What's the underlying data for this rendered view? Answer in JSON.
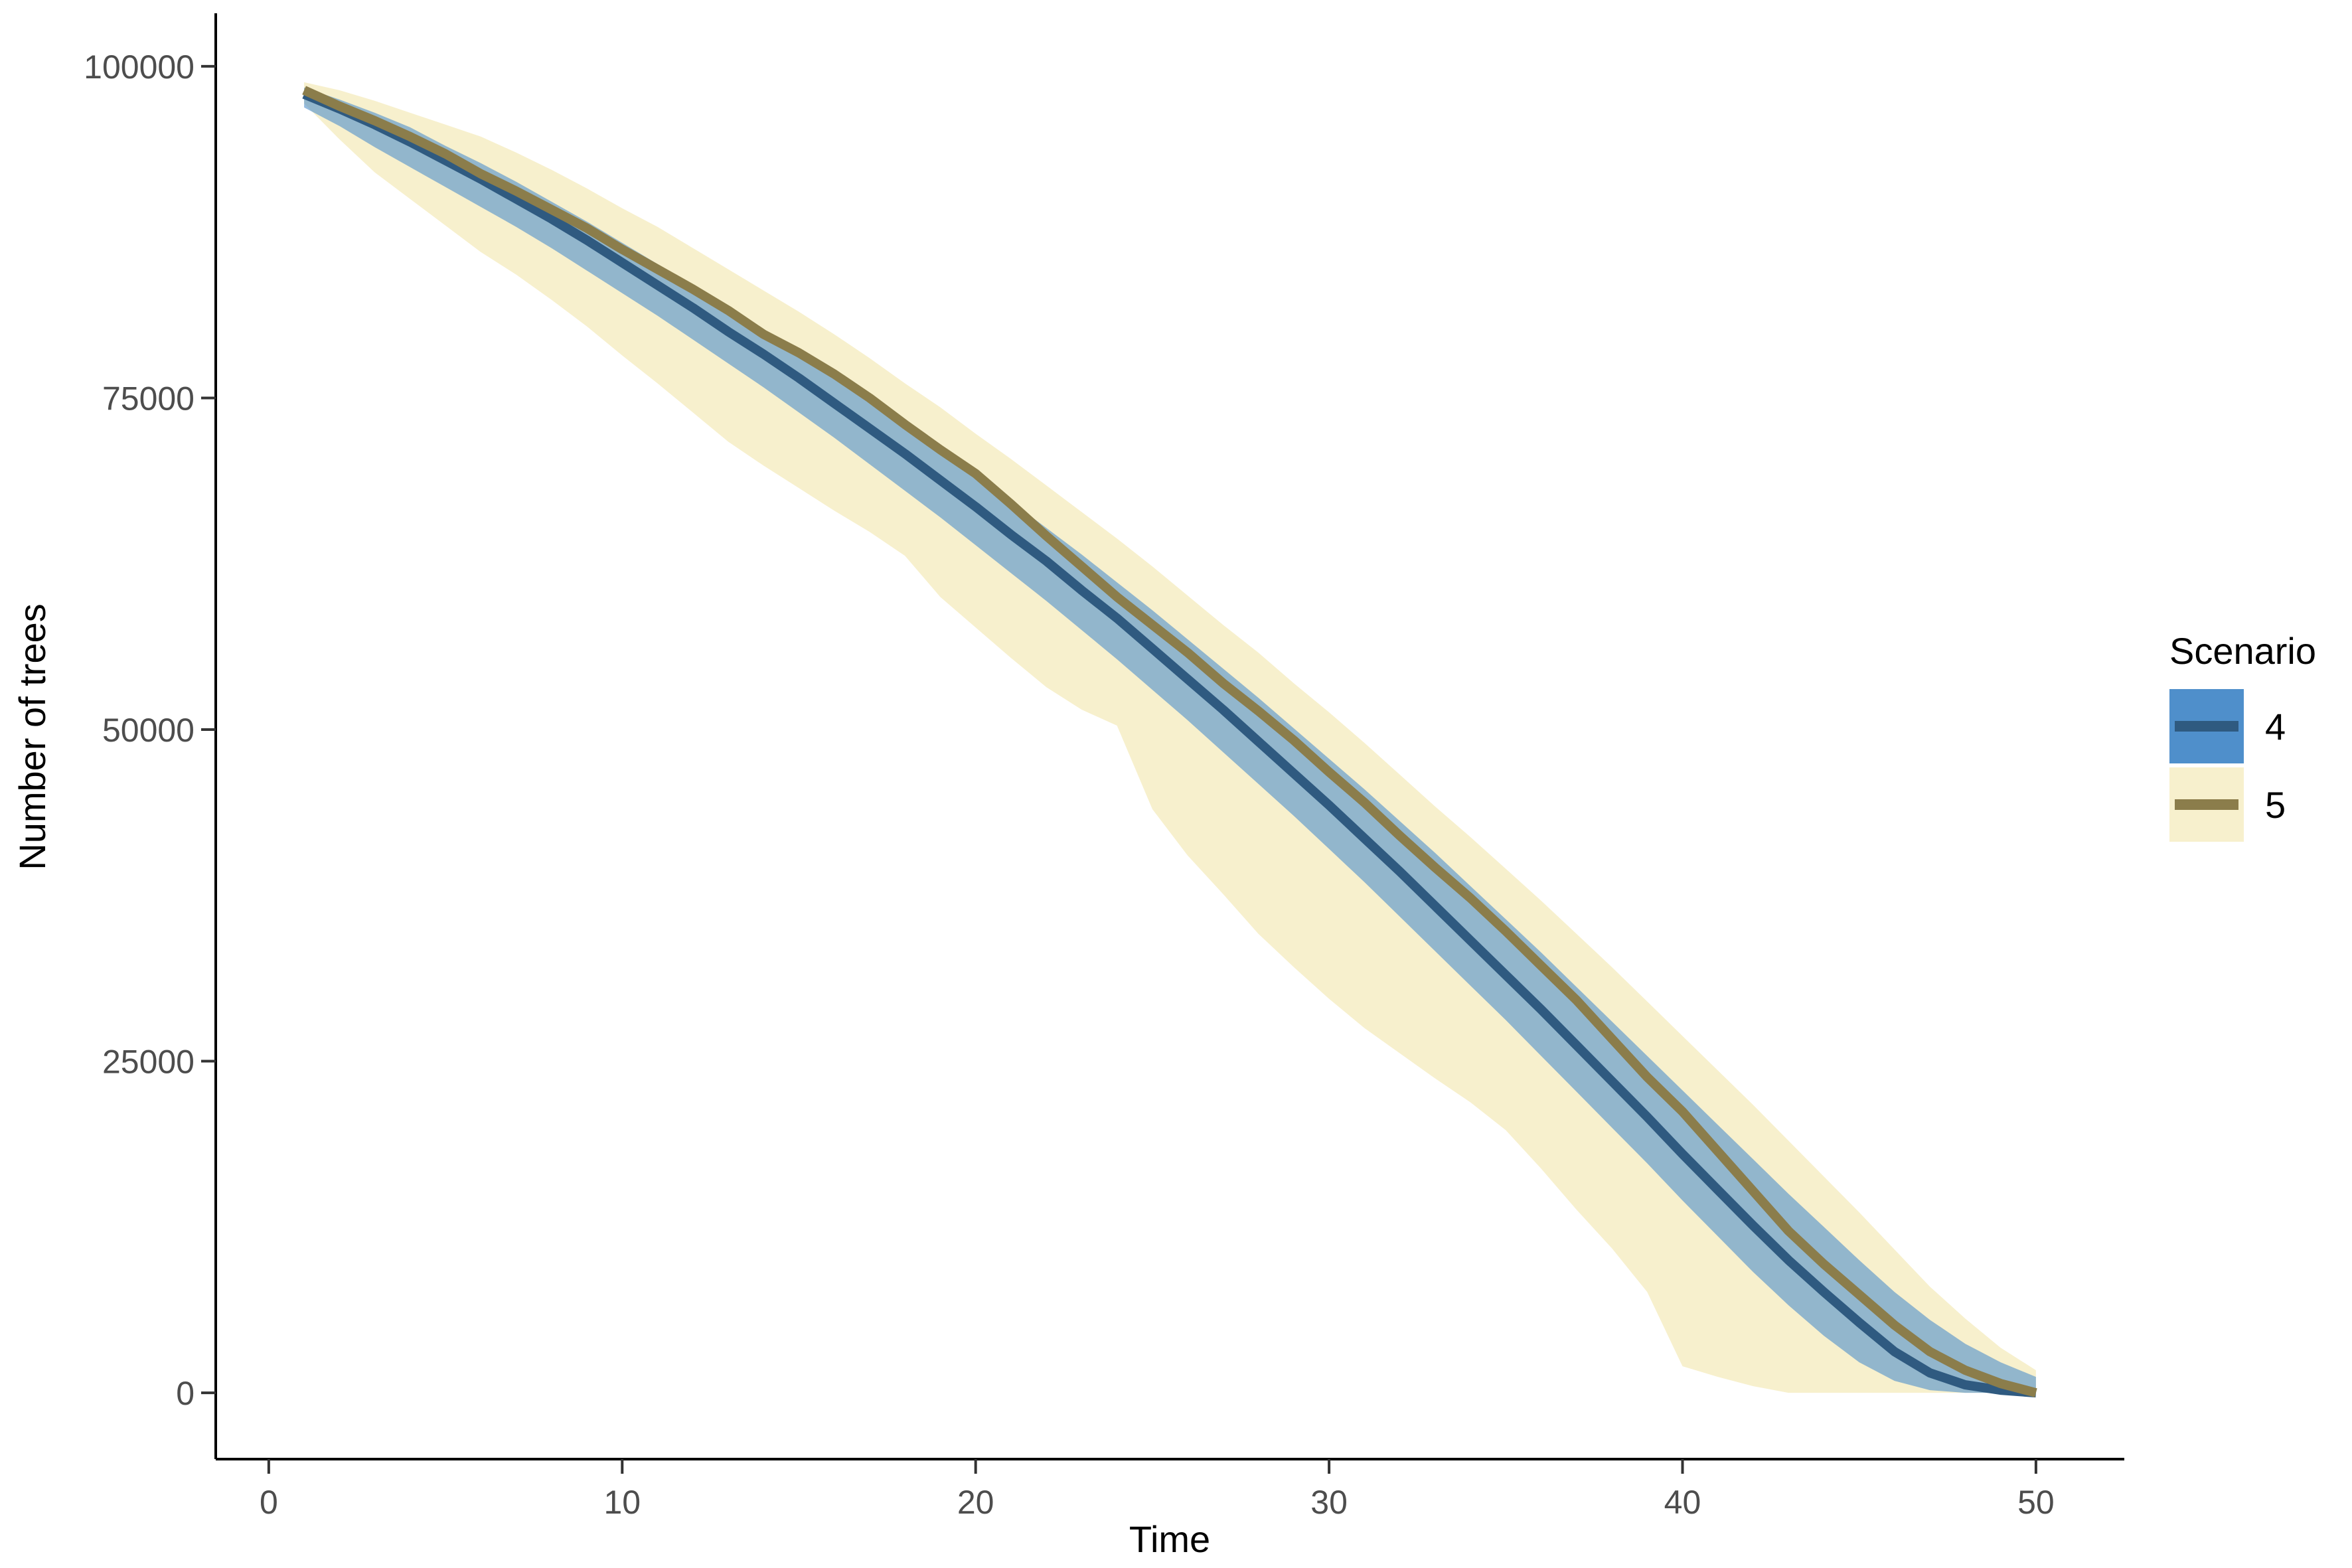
{
  "chart_data": {
    "type": "area",
    "title": "",
    "xlabel": "Time",
    "ylabel": "Number of trees",
    "xlim": [
      -1.5,
      52.5
    ],
    "ylim": [
      -5000,
      104000
    ],
    "x_ticks": [
      0,
      10,
      20,
      30,
      40,
      50
    ],
    "y_ticks": [
      0,
      25000,
      50000,
      75000,
      100000
    ],
    "x_tick_labels": [
      "0",
      "10",
      "20",
      "30",
      "40",
      "50"
    ],
    "y_tick_labels": [
      "0",
      "25000",
      "50000",
      "75000",
      "100000"
    ],
    "grid": false,
    "legend": {
      "title": "Scenario",
      "position": "right"
    },
    "x": [
      1,
      2,
      3,
      4,
      5,
      6,
      7,
      8,
      9,
      10,
      11,
      12,
      13,
      14,
      15,
      16,
      17,
      18,
      19,
      20,
      21,
      22,
      23,
      24,
      25,
      26,
      27,
      28,
      29,
      30,
      31,
      32,
      33,
      34,
      35,
      36,
      37,
      38,
      39,
      40,
      41,
      42,
      43,
      44,
      45,
      46,
      47,
      48,
      49,
      50
    ],
    "series": [
      {
        "name": "4",
        "line_color": "#2f5a80",
        "fill_color": "#4f8fcb",
        "mean": [
          97900,
          96800,
          95600,
          94300,
          92900,
          91500,
          90000,
          88500,
          86900,
          85200,
          83500,
          81800,
          80000,
          78300,
          76500,
          74600,
          72700,
          70800,
          68800,
          66800,
          64700,
          62700,
          60500,
          58400,
          56100,
          53800,
          51500,
          49100,
          46700,
          44300,
          41800,
          39300,
          36700,
          34100,
          31500,
          28900,
          26200,
          23500,
          20800,
          18000,
          15300,
          12600,
          10000,
          7600,
          5300,
          3100,
          1500,
          600,
          200,
          0
        ],
        "upper": [
          98400,
          97500,
          96500,
          95400,
          94000,
          92700,
          91300,
          89800,
          88300,
          86700,
          85100,
          83500,
          81800,
          80100,
          78400,
          76600,
          74800,
          73000,
          71100,
          69200,
          67200,
          65200,
          63200,
          61100,
          59000,
          56800,
          54600,
          52400,
          50100,
          47800,
          45500,
          43100,
          40700,
          38200,
          35700,
          33200,
          30600,
          28000,
          25400,
          22800,
          20200,
          17600,
          15000,
          12500,
          10000,
          7600,
          5500,
          3700,
          2300,
          1200
        ],
        "lower": [
          96900,
          95500,
          93900,
          92400,
          90900,
          89400,
          87900,
          86300,
          84600,
          82900,
          81200,
          79400,
          77600,
          75800,
          73900,
          72000,
          70000,
          68000,
          66000,
          63900,
          61800,
          59700,
          57500,
          55300,
          53000,
          50700,
          48300,
          45900,
          43500,
          41000,
          38500,
          35900,
          33300,
          30700,
          28100,
          25400,
          22700,
          20000,
          17300,
          14500,
          11800,
          9100,
          6600,
          4300,
          2300,
          900,
          200,
          0,
          0,
          0
        ]
      },
      {
        "name": "5",
        "line_color": "#8b7d4b",
        "fill_color": "#f7f0cd",
        "mean": [
          98200,
          97000,
          95900,
          94700,
          93400,
          91900,
          90600,
          89200,
          87800,
          86200,
          84700,
          83200,
          81600,
          79800,
          78400,
          76800,
          75000,
          73000,
          71100,
          69300,
          67000,
          64600,
          62300,
          60000,
          57900,
          55800,
          53500,
          51400,
          49200,
          46800,
          44500,
          42000,
          39600,
          37300,
          34800,
          32200,
          29600,
          26700,
          23800,
          21200,
          18200,
          15200,
          12200,
          9700,
          7400,
          5100,
          3100,
          1700,
          700,
          0
        ],
        "upper": [
          98800,
          98200,
          97400,
          96500,
          95600,
          94700,
          93500,
          92200,
          90800,
          89300,
          87900,
          86300,
          84700,
          83100,
          81500,
          79800,
          78000,
          76100,
          74300,
          72300,
          70400,
          68400,
          66400,
          64400,
          62300,
          60100,
          57900,
          55800,
          53500,
          51300,
          49000,
          46600,
          44200,
          41900,
          39500,
          37100,
          34600,
          32100,
          29500,
          26900,
          24300,
          21700,
          19000,
          16300,
          13600,
          10800,
          8000,
          5600,
          3400,
          1700
        ],
        "lower": [
          97200,
          94500,
          92000,
          90000,
          88000,
          86000,
          84300,
          82400,
          80400,
          78200,
          76100,
          73900,
          71700,
          69900,
          68200,
          66500,
          64900,
          63100,
          60000,
          57700,
          55400,
          53200,
          51500,
          50300,
          44000,
          40500,
          37600,
          34600,
          32100,
          29700,
          27500,
          25600,
          23700,
          21900,
          19800,
          16900,
          13800,
          10900,
          7600,
          2000,
          1200,
          500,
          0,
          0,
          0,
          0,
          0,
          0,
          0,
          0
        ]
      }
    ]
  }
}
